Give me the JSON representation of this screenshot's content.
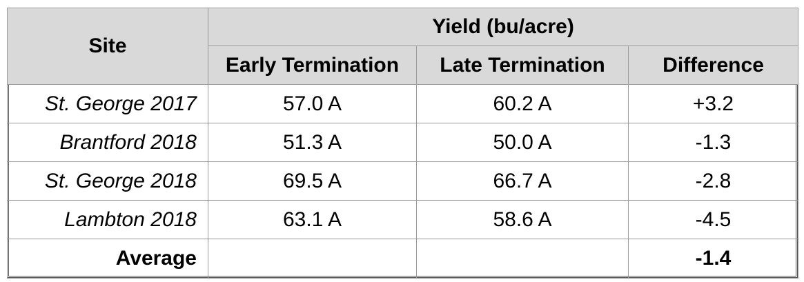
{
  "table": {
    "header": {
      "site": "Site",
      "group": "Yield (bu/acre)",
      "early": "Early Termination",
      "late": "Late Termination",
      "difference": "Difference"
    },
    "rows": [
      {
        "site": "St. George 2017",
        "early": "57.0 A",
        "late": "60.2 A",
        "difference": "+3.2"
      },
      {
        "site": "Brantford 2018",
        "early": "51.3 A",
        "late": "50.0 A",
        "difference": "-1.3"
      },
      {
        "site": "St. George 2018",
        "early": "69.5 A",
        "late": "66.7 A",
        "difference": "-2.8"
      },
      {
        "site": "Lambton 2018",
        "early": "63.1 A",
        "late": "58.6 A",
        "difference": "-4.5"
      }
    ],
    "average": {
      "label": "Average",
      "early": "",
      "late": "",
      "difference": "-1.4"
    }
  },
  "colors": {
    "header_background": "#d9d9d9",
    "border": "#9a9a9a"
  }
}
